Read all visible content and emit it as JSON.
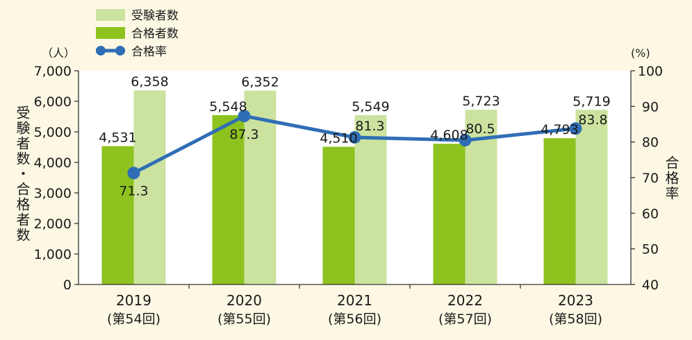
{
  "colors": {
    "background": "#fdf8e4",
    "plot_area": "#ffffff",
    "applicants": "#cce3a0",
    "passers": "#8dc21f",
    "pass_rate": "#2f6eb5",
    "axis": "#333333"
  },
  "chart_data": {
    "type": "bar",
    "categories": [
      "2019",
      "2020",
      "2021",
      "2022",
      "2023"
    ],
    "category_sublabels": [
      "(第54回)",
      "(第55回)",
      "(第56回)",
      "(第57回)",
      "(第58回)"
    ],
    "series": [
      {
        "name": "受験者数",
        "type": "bar",
        "axis": "left",
        "values": [
          6358,
          6352,
          5549,
          5723,
          5719
        ],
        "labels": [
          "6,358",
          "6,352",
          "5,549",
          "5,723",
          "5,719"
        ]
      },
      {
        "name": "合格者数",
        "type": "bar",
        "axis": "left",
        "values": [
          4531,
          5548,
          4510,
          4608,
          4793
        ],
        "labels": [
          "4,531",
          "5,548",
          "4,510",
          "4,608",
          "4,793"
        ]
      },
      {
        "name": "合格率",
        "type": "line",
        "axis": "right",
        "values": [
          71.3,
          87.3,
          81.3,
          80.5,
          83.8
        ],
        "labels": [
          "71.3",
          "87.3",
          "81.3",
          "80.5",
          "83.8"
        ]
      }
    ],
    "left_axis": {
      "label": "受験者数・合格者数",
      "unit": "（人）",
      "ylim": [
        0,
        7000
      ],
      "ticks": [
        0,
        1000,
        2000,
        3000,
        4000,
        5000,
        6000,
        7000
      ],
      "tick_labels": [
        "0",
        "1,000",
        "2,000",
        "3,000",
        "4,000",
        "5,000",
        "6,000",
        "7,000"
      ]
    },
    "right_axis": {
      "label": "合格率",
      "unit": "(%)",
      "ylim": [
        40,
        100
      ],
      "ticks": [
        40,
        50,
        60,
        70,
        80,
        90,
        100
      ],
      "tick_labels": [
        "40",
        "50",
        "60",
        "70",
        "80",
        "90",
        "100"
      ]
    },
    "legend": {
      "position": "top-left",
      "entries": [
        "受験者数",
        "合格者数",
        "合格率"
      ]
    },
    "grid": false
  }
}
